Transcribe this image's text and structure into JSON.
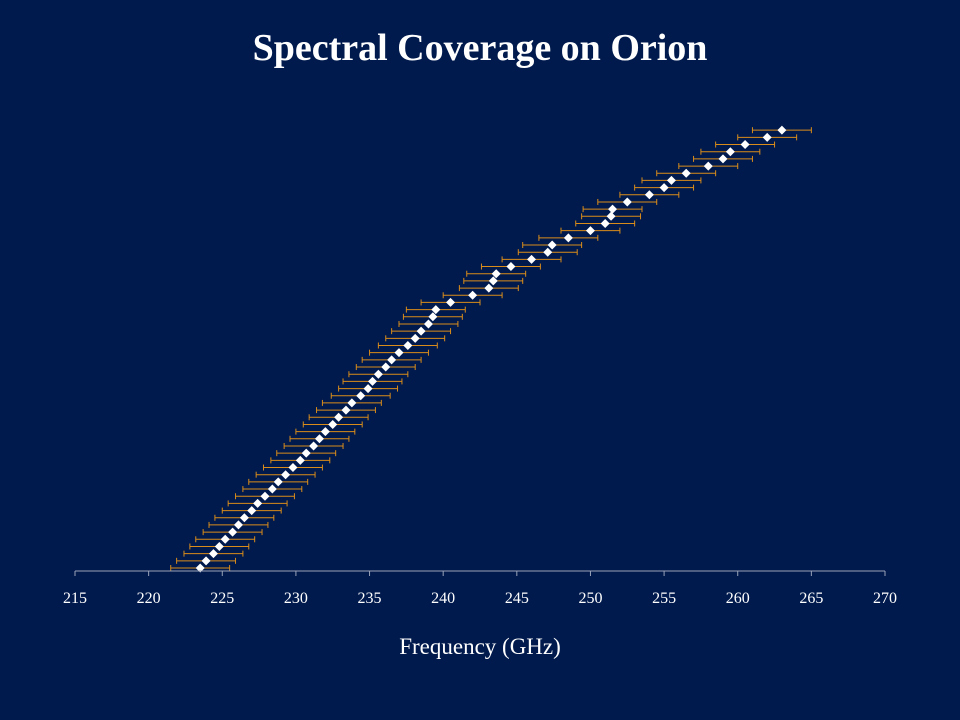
{
  "chart_data": {
    "type": "scatter",
    "title": "Spectral Coverage on Orion",
    "xlabel": "Frequency (GHz)",
    "ylabel": "",
    "xlim": [
      215,
      270
    ],
    "ylim": [
      0,
      62
    ],
    "x_ticks": [
      215,
      220,
      225,
      230,
      235,
      240,
      245,
      250,
      255,
      260,
      265,
      270
    ],
    "grid": false,
    "legend": "none",
    "error_bar_halfwidth": 2,
    "colors": {
      "background": "#001a4d",
      "marker": "#ffffff",
      "error_bar": "#d98c1a",
      "axis": "#9aa3b8"
    },
    "series": [
      {
        "points": [
          {
            "x": 223.5,
            "y": 0
          },
          {
            "x": 223.9,
            "y": 1
          },
          {
            "x": 224.4,
            "y": 2
          },
          {
            "x": 224.8,
            "y": 3
          },
          {
            "x": 225.2,
            "y": 4
          },
          {
            "x": 225.7,
            "y": 5
          },
          {
            "x": 226.1,
            "y": 6
          },
          {
            "x": 226.5,
            "y": 7
          },
          {
            "x": 227.0,
            "y": 8
          },
          {
            "x": 227.4,
            "y": 9
          },
          {
            "x": 227.9,
            "y": 10
          },
          {
            "x": 228.4,
            "y": 11
          },
          {
            "x": 228.8,
            "y": 12
          },
          {
            "x": 229.3,
            "y": 13
          },
          {
            "x": 229.8,
            "y": 14
          },
          {
            "x": 230.3,
            "y": 15
          },
          {
            "x": 230.7,
            "y": 16
          },
          {
            "x": 231.2,
            "y": 17
          },
          {
            "x": 231.6,
            "y": 18
          },
          {
            "x": 232.0,
            "y": 19
          },
          {
            "x": 232.5,
            "y": 20
          },
          {
            "x": 232.9,
            "y": 21
          },
          {
            "x": 233.4,
            "y": 22
          },
          {
            "x": 233.8,
            "y": 23
          },
          {
            "x": 234.4,
            "y": 24
          },
          {
            "x": 234.9,
            "y": 25
          },
          {
            "x": 235.2,
            "y": 26
          },
          {
            "x": 235.6,
            "y": 27
          },
          {
            "x": 236.1,
            "y": 28
          },
          {
            "x": 236.5,
            "y": 29
          },
          {
            "x": 237.0,
            "y": 30
          },
          {
            "x": 237.6,
            "y": 31
          },
          {
            "x": 238.1,
            "y": 32
          },
          {
            "x": 238.5,
            "y": 33
          },
          {
            "x": 239.0,
            "y": 34
          },
          {
            "x": 239.3,
            "y": 35
          },
          {
            "x": 239.5,
            "y": 36
          },
          {
            "x": 240.5,
            "y": 37
          },
          {
            "x": 242.0,
            "y": 38
          },
          {
            "x": 243.1,
            "y": 39
          },
          {
            "x": 243.4,
            "y": 40
          },
          {
            "x": 243.6,
            "y": 41
          },
          {
            "x": 244.6,
            "y": 42
          },
          {
            "x": 246.0,
            "y": 43
          },
          {
            "x": 247.1,
            "y": 44
          },
          {
            "x": 247.4,
            "y": 45
          },
          {
            "x": 248.5,
            "y": 46
          },
          {
            "x": 250.0,
            "y": 47
          },
          {
            "x": 251.0,
            "y": 48
          },
          {
            "x": 251.4,
            "y": 49
          },
          {
            "x": 251.5,
            "y": 50
          },
          {
            "x": 252.5,
            "y": 51
          },
          {
            "x": 254.0,
            "y": 52
          },
          {
            "x": 255.0,
            "y": 53
          },
          {
            "x": 255.5,
            "y": 54
          },
          {
            "x": 256.5,
            "y": 55
          },
          {
            "x": 258.0,
            "y": 56
          },
          {
            "x": 259.0,
            "y": 57
          },
          {
            "x": 259.5,
            "y": 58
          },
          {
            "x": 260.5,
            "y": 59
          },
          {
            "x": 262.0,
            "y": 60
          },
          {
            "x": 263.0,
            "y": 61
          }
        ]
      }
    ]
  }
}
